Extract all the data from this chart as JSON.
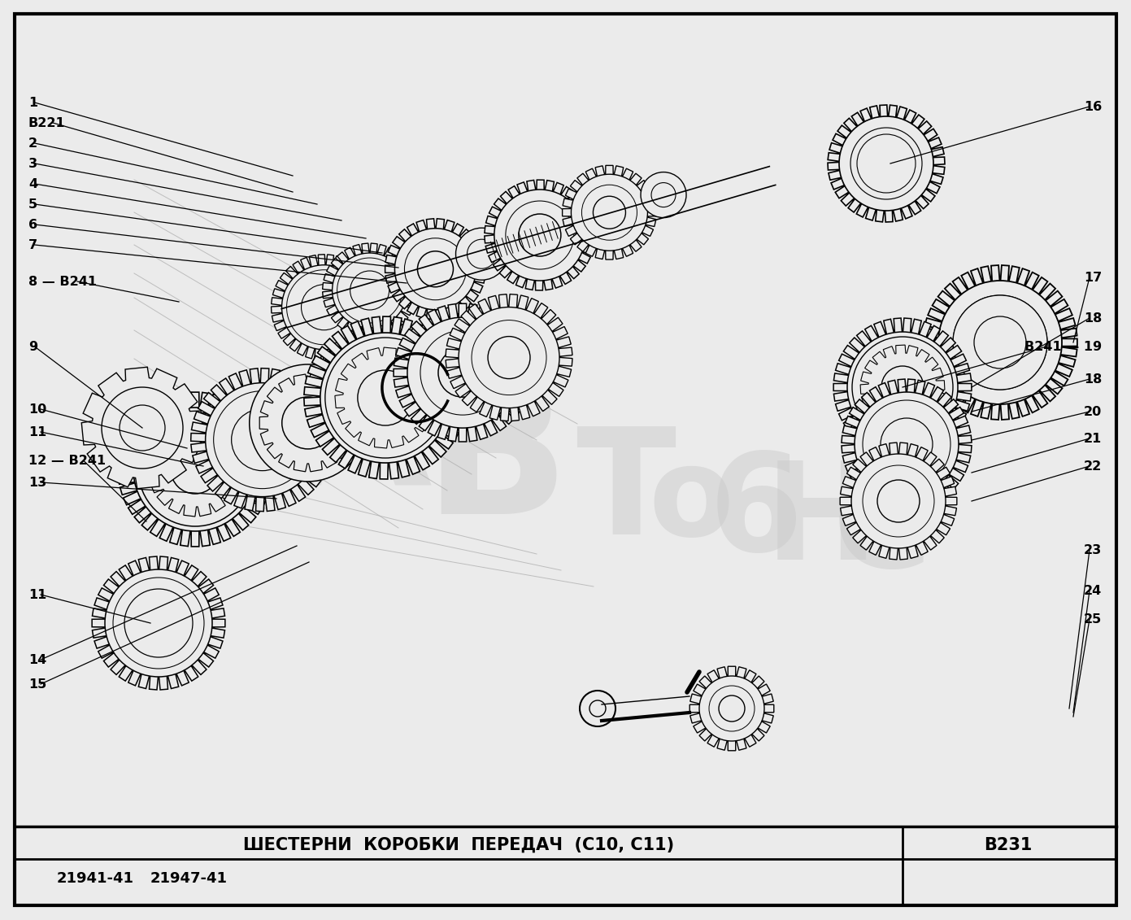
{
  "title": "ШЕСТЕРНИ  КОРОБКИ  ПЕРЕДАЧ  (С10, С11)",
  "drawing_number": "B231",
  "bottom_left_codes": [
    "21941-41",
    "21947-41"
  ],
  "bg_color": "#ebebeb",
  "line_color": "#000000"
}
